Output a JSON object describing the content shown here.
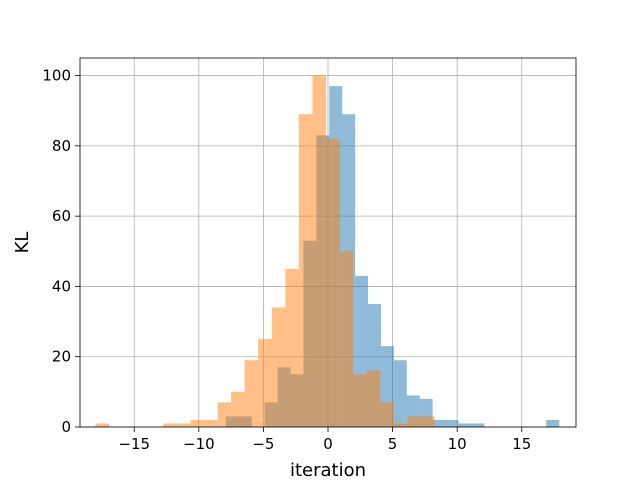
{
  "chart_data": {
    "type": "bar",
    "title": "",
    "xlabel": "iteration",
    "ylabel": "KL",
    "xlim": [
      -19.2,
      19.2
    ],
    "ylim": [
      0,
      105
    ],
    "grid": true,
    "legend": "none",
    "xticks": [
      -15,
      -10,
      -5,
      0,
      5,
      10,
      15
    ],
    "yticks": [
      0,
      20,
      40,
      60,
      80,
      100
    ],
    "xtick_labels": [
      "−15",
      "−10",
      "−5",
      "0",
      "5",
      "10",
      "15"
    ],
    "ytick_labels": [
      "0",
      "20",
      "40",
      "60",
      "80",
      "100"
    ],
    "series": [
      {
        "color": "#1f77b4",
        "opacity": 0.5,
        "bins": [
          {
            "x0": -7.9,
            "x1": -6.9,
            "value": 3
          },
          {
            "x0": -6.9,
            "x1": -5.9,
            "value": 3
          },
          {
            "x0": -4.9,
            "x1": -3.9,
            "value": 7
          },
          {
            "x0": -3.9,
            "x1": -2.9,
            "value": 17
          },
          {
            "x0": -2.9,
            "x1": -1.9,
            "value": 15
          },
          {
            "x0": -1.9,
            "x1": -0.9,
            "value": 53
          },
          {
            "x0": -0.9,
            "x1": 0.1,
            "value": 83
          },
          {
            "x0": 0.1,
            "x1": 1.1,
            "value": 97
          },
          {
            "x0": 1.1,
            "x1": 2.1,
            "value": 89
          },
          {
            "x0": 2.1,
            "x1": 3.1,
            "value": 43
          },
          {
            "x0": 3.1,
            "x1": 4.1,
            "value": 35
          },
          {
            "x0": 4.1,
            "x1": 5.1,
            "value": 23
          },
          {
            "x0": 5.1,
            "x1": 6.1,
            "value": 19
          },
          {
            "x0": 6.1,
            "x1": 7.1,
            "value": 9
          },
          {
            "x0": 7.1,
            "x1": 8.1,
            "value": 8
          },
          {
            "x0": 8.1,
            "x1": 9.1,
            "value": 2
          },
          {
            "x0": 9.1,
            "x1": 10.1,
            "value": 2
          },
          {
            "x0": 10.1,
            "x1": 11.1,
            "value": 1
          },
          {
            "x0": 11.1,
            "x1": 12.1,
            "value": 1
          },
          {
            "x0": 16.9,
            "x1": 17.9,
            "value": 2
          }
        ]
      },
      {
        "color": "#ff7f0e",
        "opacity": 0.5,
        "bins": [
          {
            "x0": -18.0,
            "x1": -16.95,
            "value": 1
          },
          {
            "x0": -12.75,
            "x1": -11.7,
            "value": 1
          },
          {
            "x0": -11.7,
            "x1": -10.65,
            "value": 1
          },
          {
            "x0": -10.65,
            "x1": -9.6,
            "value": 2
          },
          {
            "x0": -9.6,
            "x1": -8.55,
            "value": 2
          },
          {
            "x0": -8.55,
            "x1": -7.5,
            "value": 7
          },
          {
            "x0": -7.5,
            "x1": -6.45,
            "value": 10
          },
          {
            "x0": -6.45,
            "x1": -5.4,
            "value": 19
          },
          {
            "x0": -5.4,
            "x1": -4.35,
            "value": 25
          },
          {
            "x0": -4.35,
            "x1": -3.3,
            "value": 34
          },
          {
            "x0": -3.3,
            "x1": -2.25,
            "value": 45
          },
          {
            "x0": -2.25,
            "x1": -1.2,
            "value": 89
          },
          {
            "x0": -1.2,
            "x1": -0.15,
            "value": 100
          },
          {
            "x0": -0.15,
            "x1": 0.9,
            "value": 82
          },
          {
            "x0": 0.9,
            "x1": 1.95,
            "value": 50
          },
          {
            "x0": 1.95,
            "x1": 3.0,
            "value": 15
          },
          {
            "x0": 3.0,
            "x1": 4.05,
            "value": 16
          },
          {
            "x0": 4.05,
            "x1": 5.1,
            "value": 7
          },
          {
            "x0": 5.1,
            "x1": 6.15,
            "value": 1
          },
          {
            "x0": 6.15,
            "x1": 7.2,
            "value": 3
          },
          {
            "x0": 7.2,
            "x1": 8.25,
            "value": 3
          }
        ]
      }
    ]
  }
}
